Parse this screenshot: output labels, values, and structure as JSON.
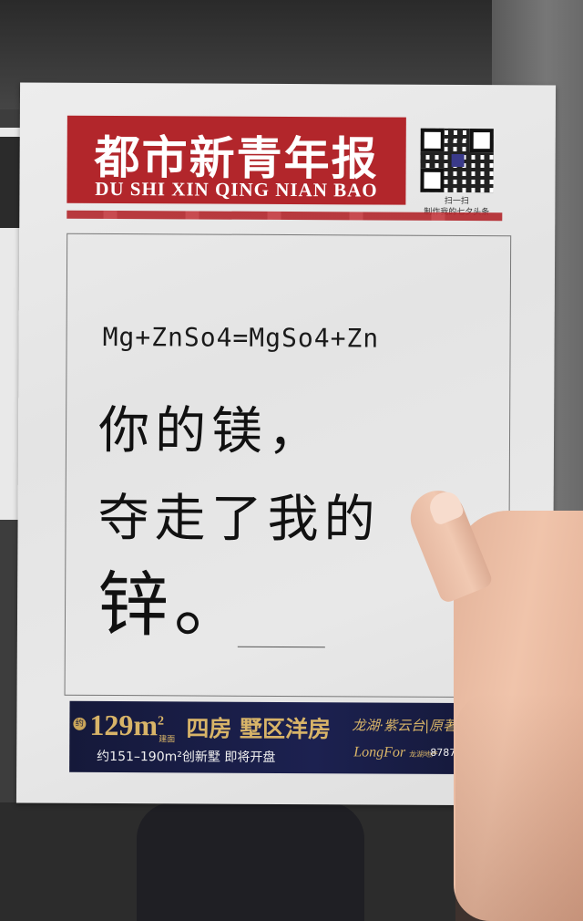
{
  "newspaper": {
    "title_cn": "都市新青年报",
    "title_pinyin": "DU SHI XIN QING NIAN BAO",
    "qr_caption_line1": "扫一扫",
    "qr_caption_line2": "制作我的七夕头条",
    "masthead_color": "#b2262b"
  },
  "headline": {
    "equation": "Mg+ZnSo4=MgSo4+Zn",
    "line1": "你的镁，",
    "line2": "夺走了我的",
    "line3": "锌。"
  },
  "ad": {
    "badge": "约",
    "area": "129m",
    "area_sup": "2",
    "area_note": "建面",
    "slogan": "四房 墅区洋房",
    "brand_line": "龙湖·紫云台|原著",
    "info": "约151–190m²创新墅 即将开盘",
    "logo": "LongFor",
    "logo_cn": "龙湖地产",
    "phone": "8787 3311",
    "bg_color": "#15193a",
    "gold_color": "#c9a45a"
  }
}
